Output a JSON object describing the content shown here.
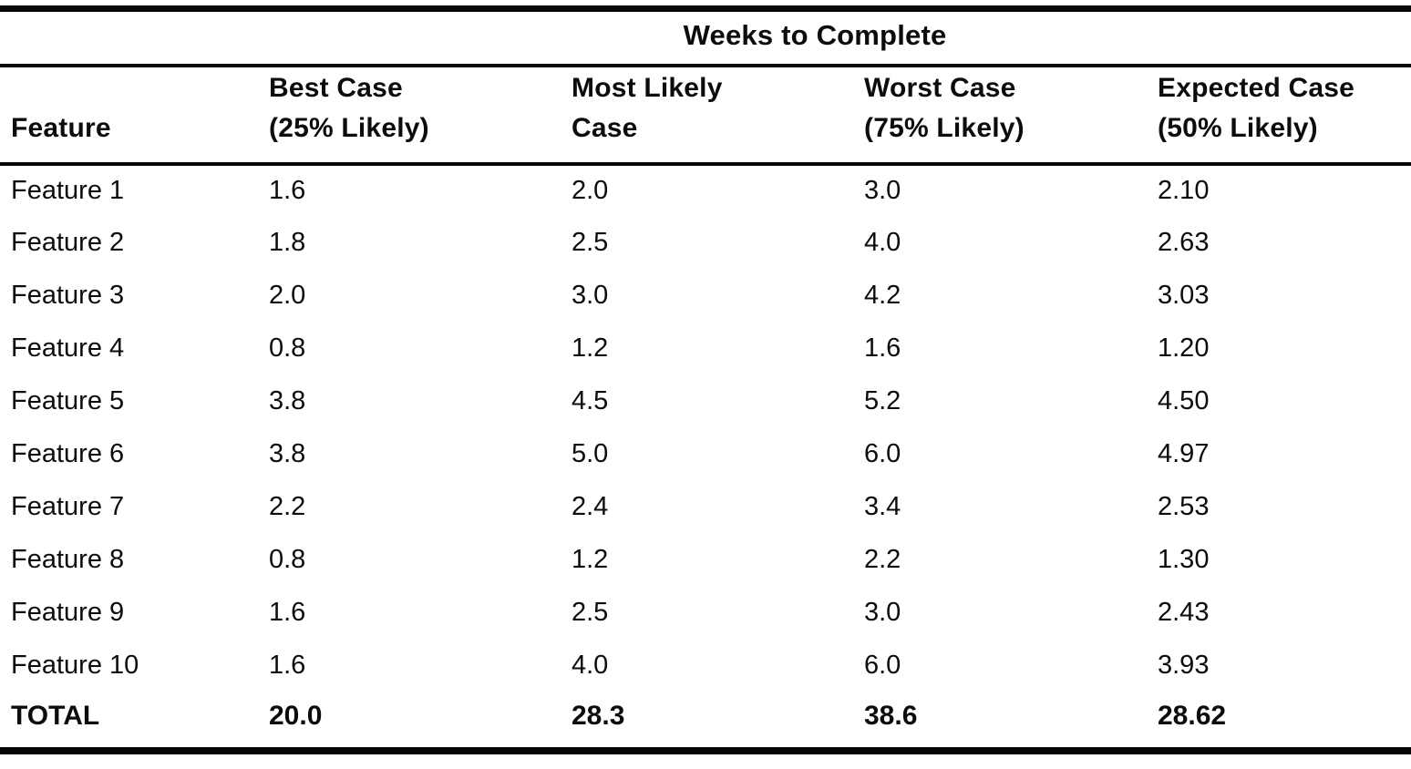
{
  "table": {
    "spanning_header": "Weeks to Complete",
    "columns": [
      {
        "label": "Feature",
        "sublabel": ""
      },
      {
        "label": "Best Case",
        "sublabel": "(25% Likely)"
      },
      {
        "label": "Most Likely",
        "sublabel": "Case"
      },
      {
        "label": "Worst Case",
        "sublabel": "(75% Likely)"
      },
      {
        "label": "Expected Case",
        "sublabel": "(50% Likely)"
      }
    ],
    "rows": [
      {
        "feature": "Feature 1",
        "best": "1.6",
        "most_likely": "2.0",
        "worst": "3.0",
        "expected": "2.10"
      },
      {
        "feature": "Feature 2",
        "best": "1.8",
        "most_likely": "2.5",
        "worst": "4.0",
        "expected": "2.63"
      },
      {
        "feature": "Feature 3",
        "best": "2.0",
        "most_likely": "3.0",
        "worst": "4.2",
        "expected": "3.03"
      },
      {
        "feature": "Feature 4",
        "best": "0.8",
        "most_likely": "1.2",
        "worst": "1.6",
        "expected": "1.20"
      },
      {
        "feature": "Feature 5",
        "best": "3.8",
        "most_likely": "4.5",
        "worst": "5.2",
        "expected": "4.50"
      },
      {
        "feature": "Feature 6",
        "best": "3.8",
        "most_likely": "5.0",
        "worst": "6.0",
        "expected": "4.97"
      },
      {
        "feature": "Feature 7",
        "best": "2.2",
        "most_likely": "2.4",
        "worst": "3.4",
        "expected": "2.53"
      },
      {
        "feature": "Feature 8",
        "best": "0.8",
        "most_likely": "1.2",
        "worst": "2.2",
        "expected": "1.30"
      },
      {
        "feature": "Feature 9",
        "best": "1.6",
        "most_likely": "2.5",
        "worst": "3.0",
        "expected": "2.43"
      },
      {
        "feature": "Feature 10",
        "best": "1.6",
        "most_likely": "4.0",
        "worst": "6.0",
        "expected": "3.93"
      }
    ],
    "total_row": {
      "feature": "TOTAL",
      "best": "20.0",
      "most_likely": "28.3",
      "worst": "38.6",
      "expected": "28.62"
    },
    "ink_color": "#0c0c0c",
    "background_color": "#ffffff"
  }
}
